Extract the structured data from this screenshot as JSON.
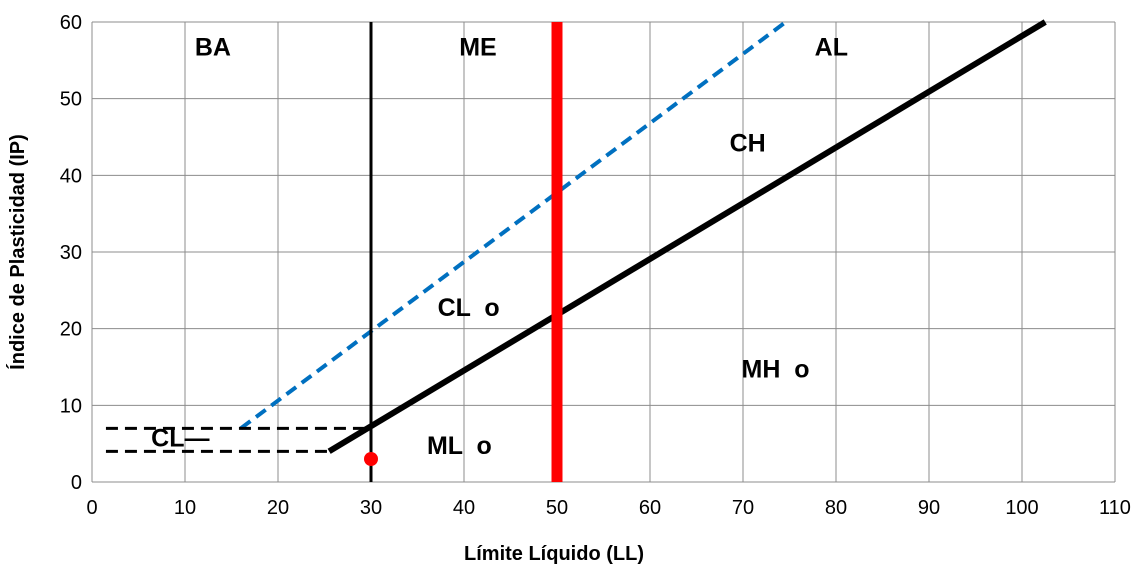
{
  "chart_data": {
    "type": "line",
    "title": "",
    "xlabel": "Límite Líquido (LL)",
    "ylabel": "Índice de Plasticidad (IP)",
    "xlim": [
      0,
      110
    ],
    "ylim": [
      0,
      60
    ],
    "x_ticks": [
      0,
      10,
      20,
      30,
      40,
      50,
      60,
      70,
      80,
      90,
      100,
      110
    ],
    "y_ticks": [
      0,
      10,
      20,
      30,
      40,
      50,
      60
    ],
    "grid": true,
    "legend": "none",
    "series": [
      {
        "style": "dashed",
        "color": "#0070c0",
        "width": 4,
        "points": [
          [
            16,
            7
          ],
          [
            74.6,
            60
          ]
        ]
      },
      {
        "style": "solid",
        "color": "#000000",
        "width": 6,
        "points": [
          [
            25.5,
            4
          ],
          [
            102.5,
            60
          ]
        ]
      },
      {
        "style": "solid",
        "color": "#000000",
        "width": 3,
        "points": [
          [
            30,
            0
          ],
          [
            30,
            60
          ]
        ]
      },
      {
        "style": "solid",
        "color": "#ff0000",
        "width": 11,
        "points": [
          [
            50,
            0
          ],
          [
            50,
            60
          ]
        ]
      },
      {
        "style": "dashed",
        "color": "#000000",
        "width": 3,
        "points": [
          [
            1.5,
            7
          ],
          [
            30,
            7
          ]
        ]
      },
      {
        "style": "dashed",
        "color": "#000000",
        "width": 3,
        "points": [
          [
            1.5,
            4
          ],
          [
            25.5,
            4
          ]
        ]
      }
    ],
    "point": {
      "x": 30,
      "y": 3,
      "color": "#ff0000"
    },
    "region_labels": [
      {
        "text": "BA",
        "x": 13,
        "y": 56.5
      },
      {
        "text": "ME",
        "x": 41.5,
        "y": 56.5
      },
      {
        "text": "AL",
        "x": 79.5,
        "y": 56.5
      },
      {
        "text": "CH",
        "x": 70.5,
        "y": 44
      },
      {
        "text": "CL  o",
        "x": 40.5,
        "y": 22.5
      },
      {
        "text": "MH  o",
        "x": 73.5,
        "y": 14.5
      },
      {
        "text": "ML  o",
        "x": 39.5,
        "y": 4.5
      },
      {
        "text": "CL—",
        "x": 9.5,
        "y": 5.5
      }
    ]
  }
}
